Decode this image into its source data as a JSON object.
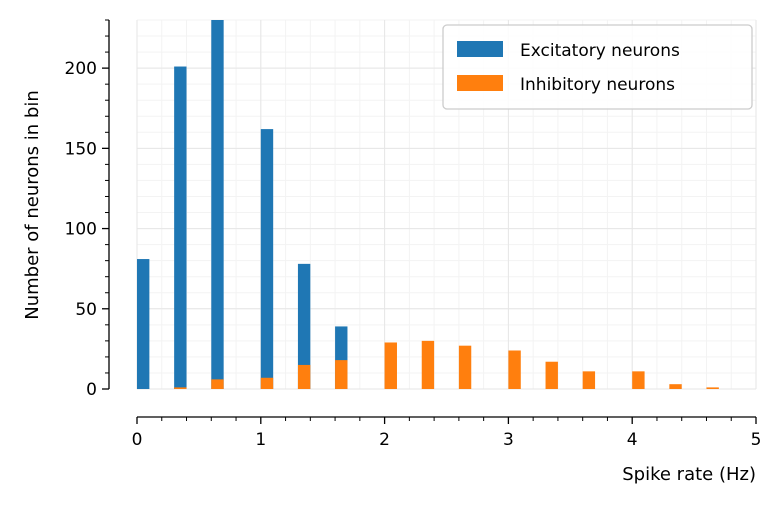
{
  "chart_data": {
    "type": "bar",
    "xlabel": "Spike rate (Hz)",
    "ylabel": "Number of neurons in bin",
    "xlim": [
      0,
      5
    ],
    "ylim": [
      0,
      230
    ],
    "x_ticks": [
      "0",
      "1",
      "2",
      "3",
      "4",
      "5"
    ],
    "y_ticks": [
      "0",
      "50",
      "100",
      "150",
      "200"
    ],
    "grid": true,
    "legend_position": "top-right",
    "series": [
      {
        "name": "Excitatory neurons",
        "color": "#1f77b4",
        "x": [
          0.05,
          0.35,
          0.65,
          1.05,
          1.35,
          1.65
        ],
        "values": [
          81,
          201,
          230,
          162,
          78,
          39
        ]
      },
      {
        "name": "Inhibitory neurons",
        "color": "#ff7f0e",
        "x": [
          0.35,
          0.65,
          1.05,
          1.35,
          1.65,
          2.05,
          2.35,
          2.65,
          3.05,
          3.35,
          3.65,
          4.05,
          4.35,
          4.65
        ],
        "values": [
          1,
          6,
          7,
          15,
          18,
          29,
          30,
          27,
          24,
          17,
          11,
          11,
          3,
          1
        ]
      }
    ]
  }
}
